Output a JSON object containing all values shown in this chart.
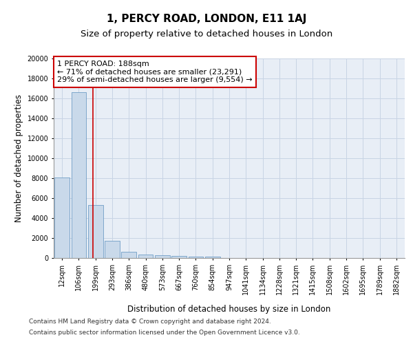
{
  "title_line1": "1, PERCY ROAD, LONDON, E11 1AJ",
  "title_line2": "Size of property relative to detached houses in London",
  "xlabel": "Distribution of detached houses by size in London",
  "ylabel": "Number of detached properties",
  "bar_labels": [
    "12sqm",
    "106sqm",
    "199sqm",
    "293sqm",
    "386sqm",
    "480sqm",
    "573sqm",
    "667sqm",
    "760sqm",
    "854sqm",
    "947sqm",
    "1041sqm",
    "1134sqm",
    "1228sqm",
    "1321sqm",
    "1415sqm",
    "1508sqm",
    "1602sqm",
    "1695sqm",
    "1789sqm",
    "1882sqm"
  ],
  "bar_values": [
    8100,
    16600,
    5300,
    1750,
    650,
    350,
    270,
    220,
    170,
    130,
    0,
    0,
    0,
    0,
    0,
    0,
    0,
    0,
    0,
    0,
    0
  ],
  "bar_color": "#c9d9ea",
  "bar_edge_color": "#5a8fbe",
  "vline_color": "#cc0000",
  "annotation_text": "1 PERCY ROAD: 188sqm\n← 71% of detached houses are smaller (23,291)\n29% of semi-detached houses are larger (9,554) →",
  "annotation_box_color": "#ffffff",
  "annotation_border_color": "#cc0000",
  "ylim": [
    0,
    20000
  ],
  "yticks": [
    0,
    2000,
    4000,
    6000,
    8000,
    10000,
    12000,
    14000,
    16000,
    18000,
    20000
  ],
  "grid_color": "#c8d4e4",
  "background_color": "#e8eef6",
  "footer_line1": "Contains HM Land Registry data © Crown copyright and database right 2024.",
  "footer_line2": "Contains public sector information licensed under the Open Government Licence v3.0.",
  "title_fontsize": 11,
  "subtitle_fontsize": 9.5,
  "axis_label_fontsize": 8.5,
  "tick_fontsize": 7,
  "annotation_fontsize": 8,
  "footer_fontsize": 6.5
}
